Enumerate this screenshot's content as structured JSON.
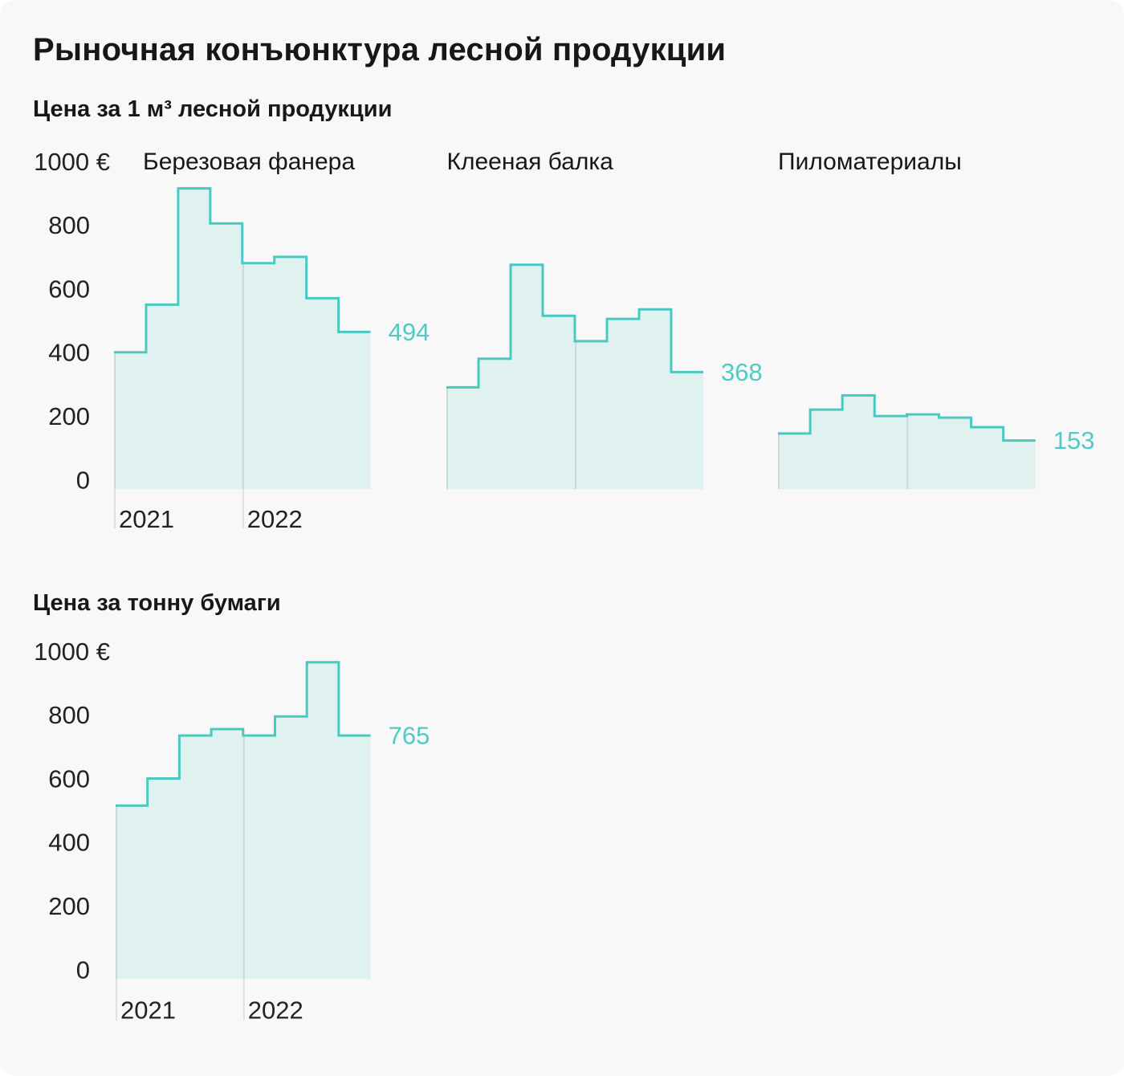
{
  "title": "Рыночная конъюнктура лесной продукции",
  "sections": [
    {
      "subtitle": "Цена за 1 м³ лесной продукции",
      "axis_unit_label": "1000 €"
    },
    {
      "subtitle": "Цена за тонну бумаги",
      "axis_unit_label": "1000 €"
    }
  ],
  "colors": {
    "card_bg": "#F8F8F8",
    "line": "#4BC8C0",
    "fill": "#DFF2EF",
    "value_label": "#50CBC3",
    "grid_in_fill": "#CBD9D6",
    "grid_below_fill": "#DFE0DF",
    "chart_title_text": "#171717",
    "tick_text": "#222222"
  },
  "chart_data": [
    {
      "type": "area",
      "subtype": "step",
      "section": 0,
      "title": "Березовая фанера",
      "years": [
        "2021",
        "2022"
      ],
      "steps_per_year": 4,
      "values": [
        430,
        580,
        945,
        835,
        710,
        730,
        600,
        494
      ],
      "end_label": "494",
      "ylim": [
        0,
        1000
      ],
      "ytick_values": [
        0,
        200,
        400,
        600,
        800,
        1000
      ],
      "ytick_labels": [
        "0",
        "200",
        "400",
        "600",
        "800",
        "1000 €"
      ],
      "show_yticks": true,
      "show_year_labels": true,
      "grid": "year-dividers-only",
      "legend": "none"
    },
    {
      "type": "area",
      "subtype": "step",
      "section": 0,
      "title": "Клееная балка",
      "years": [
        "2021",
        "2022"
      ],
      "steps_per_year": 4,
      "values": [
        320,
        410,
        705,
        545,
        465,
        535,
        565,
        368
      ],
      "end_label": "368",
      "ylim": [
        0,
        1000
      ],
      "ytick_values": [
        0,
        200,
        400,
        600,
        800,
        1000
      ],
      "ytick_labels": [
        "0",
        "200",
        "400",
        "600",
        "800",
        "1000 €"
      ],
      "show_yticks": false,
      "show_year_labels": false,
      "grid": "year-dividers-only",
      "legend": "none"
    },
    {
      "type": "area",
      "subtype": "step",
      "section": 0,
      "title": "Пиломатериалы",
      "years": [
        "2021",
        "2022"
      ],
      "steps_per_year": 4,
      "values": [
        175,
        250,
        295,
        230,
        235,
        225,
        195,
        153
      ],
      "end_label": "153",
      "ylim": [
        0,
        1000
      ],
      "ytick_values": [
        0,
        200,
        400,
        600,
        800,
        1000
      ],
      "ytick_labels": [
        "0",
        "200",
        "400",
        "600",
        "800",
        "1000 €"
      ],
      "show_yticks": false,
      "show_year_labels": false,
      "grid": "year-dividers-only",
      "legend": "none"
    },
    {
      "type": "area",
      "subtype": "step",
      "section": 1,
      "title": "",
      "years": [
        "2021",
        "2022"
      ],
      "steps_per_year": 4,
      "values": [
        545,
        630,
        765,
        785,
        765,
        825,
        995,
        765
      ],
      "end_label": "765",
      "ylim": [
        0,
        1000
      ],
      "ytick_values": [
        0,
        200,
        400,
        600,
        800,
        1000
      ],
      "ytick_labels": [
        "0",
        "200",
        "400",
        "600",
        "800",
        "1000 €"
      ],
      "show_yticks": true,
      "show_year_labels": true,
      "grid": "year-dividers-only",
      "legend": "none"
    }
  ]
}
